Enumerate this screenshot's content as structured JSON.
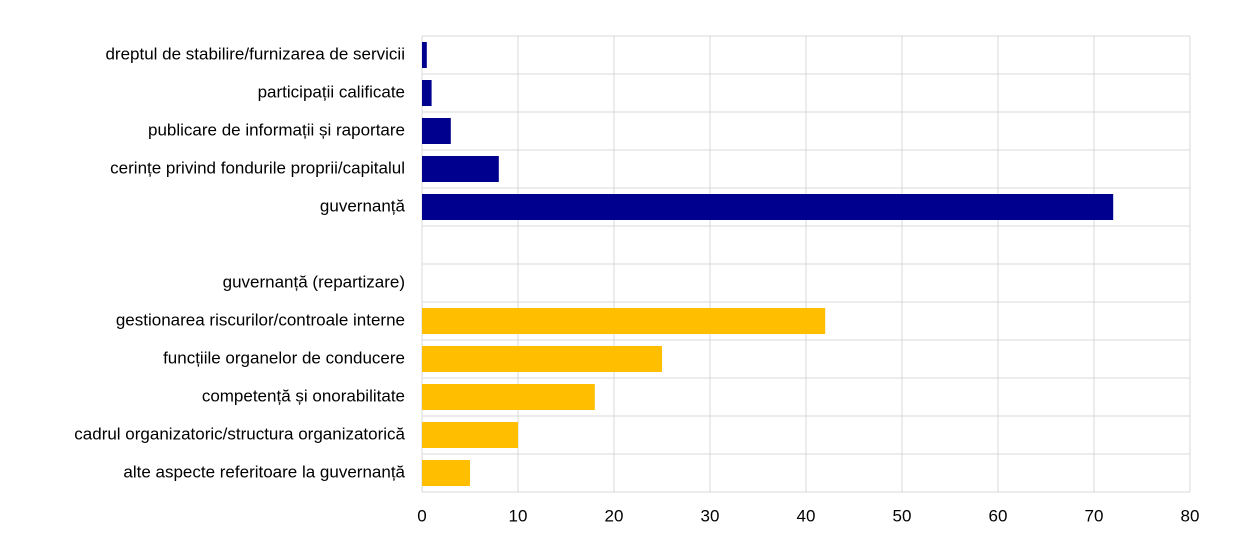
{
  "chart_data": {
    "type": "hbar",
    "categories": [
      "dreptul de stabilire/furnizarea de servicii",
      "participații calificate",
      "publicare de informații și raportare",
      "cerințe privind fondurile proprii/capitalul",
      "guvernanță",
      null,
      "guvernanță (repartizare)",
      "gestionarea riscurilor/controale interne",
      "funcțiile organelor de conducere",
      "competență și onorabilitate",
      "cadrul organizatoric/structura organizatorică",
      "alte aspecte referitoare la guvernanță"
    ],
    "values": [
      0.5,
      1,
      3,
      8,
      72,
      null,
      null,
      42,
      25,
      18,
      10,
      5
    ],
    "colors": [
      "#00008f",
      "#00008f",
      "#00008f",
      "#00008f",
      "#00008f",
      null,
      null,
      "#ffbf00",
      "#ffbf00",
      "#ffbf00",
      "#ffbf00",
      "#ffbf00"
    ],
    "xlim": [
      0,
      80
    ],
    "xticks": [
      0,
      10,
      20,
      30,
      40,
      50,
      60,
      70,
      80
    ],
    "grid": true
  }
}
